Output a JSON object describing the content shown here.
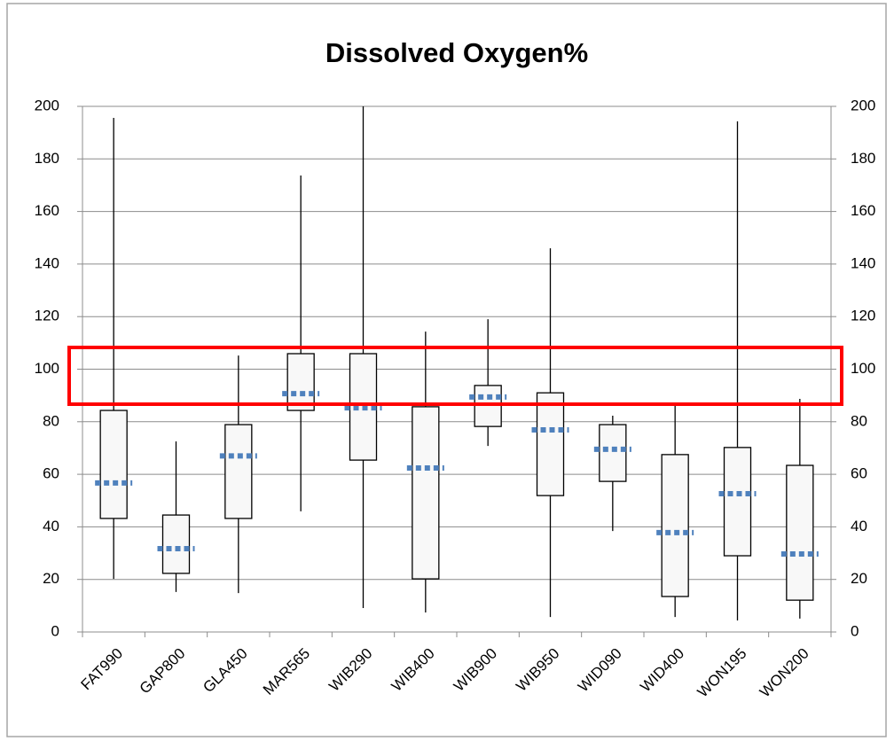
{
  "chart_data": {
    "type": "box",
    "title": "Dissolved Oxygen%",
    "categories": [
      "FAT990",
      "GAP800",
      "GLA450",
      "MAR565",
      "WIB290",
      "WIB400",
      "WIB900",
      "WIB950",
      "WID090",
      "WID400",
      "WON195",
      "WON200"
    ],
    "low": [
      20.2,
      15.2,
      14.8,
      45.9,
      9.1,
      7.4,
      70.8,
      5.7,
      38.4,
      5.7,
      4.4,
      5.1
    ],
    "q1": [
      43.2,
      22.3,
      43.2,
      84.3,
      65.4,
      20.2,
      78.2,
      51.9,
      57.3,
      13.5,
      29,
      12.1
    ],
    "q3": [
      84.3,
      44.5,
      78.9,
      105.9,
      105.9,
      85.7,
      93.8,
      91,
      78.9,
      67.5,
      70.2,
      63.4
    ],
    "high": [
      195.6,
      72.5,
      105.2,
      173.7,
      200,
      114.3,
      119,
      146,
      82.3,
      86,
      194.3,
      88.7
    ],
    "mean": [
      56.7,
      31.7,
      67,
      90.7,
      85.3,
      62.4,
      89.4,
      76.9,
      69.5,
      37.8,
      52.6,
      29.7
    ],
    "box_color": "#f8f8f8",
    "mean_color": "#4f81bd",
    "ylim": [
      0,
      200
    ],
    "yticks": [
      0,
      20,
      40,
      60,
      80,
      100,
      120,
      140,
      160,
      180,
      200
    ],
    "y2lim": [
      0,
      200
    ],
    "y2ticks": [
      0,
      20,
      40,
      60,
      80,
      100,
      120,
      140,
      160,
      180,
      200
    ],
    "grid": true
  }
}
